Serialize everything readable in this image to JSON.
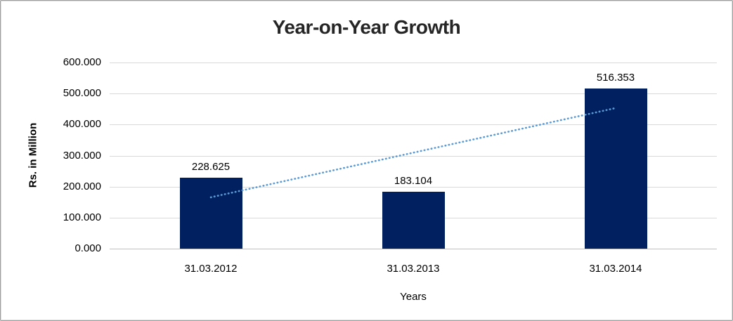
{
  "window": {
    "background": "#ffffff",
    "border_color": "#9e9e9e"
  },
  "chart_data": {
    "type": "bar",
    "title": "Year-on-Year Growth",
    "xlabel": "Years",
    "ylabel": "Rs. in Million",
    "categories": [
      "31.03.2012",
      "31.03.2013",
      "31.03.2014"
    ],
    "values": [
      228.625,
      183.104,
      516.353
    ],
    "value_labels": [
      "228.625",
      "183.104",
      "516.353"
    ],
    "ylim": [
      0,
      600
    ],
    "ytick_step": 100,
    "ytick_labels": [
      "0.000",
      "100.000",
      "200.000",
      "300.000",
      "400.000",
      "500.000",
      "600.000"
    ],
    "grid": true,
    "legend": "none",
    "bar_color": "#002060",
    "gridline_color": "#D9D9D9",
    "axis_line_color": "#BFBFBF",
    "title_color": "#262626",
    "text_color": "#000000",
    "trendline": {
      "type": "linear",
      "style": "dotted",
      "color": "#5B9BD5",
      "start_value": 165.5,
      "end_value": 453.2
    }
  }
}
